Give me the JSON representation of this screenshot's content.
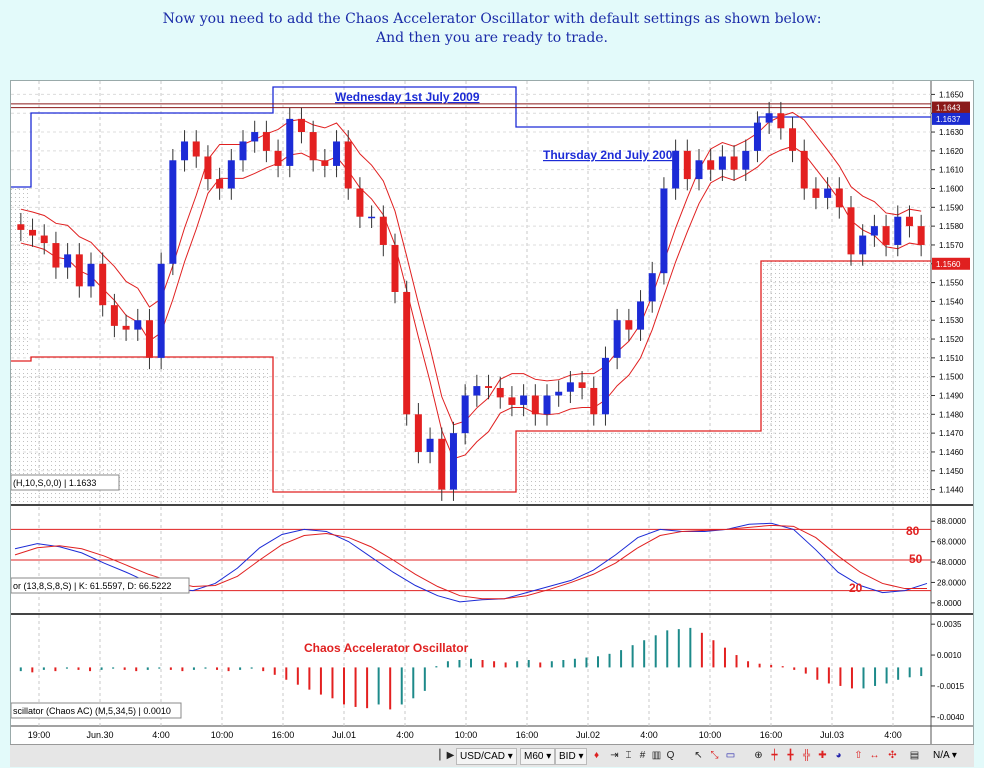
{
  "header": {
    "line1": "Now you need to add the Chaos Accelerator Oscillator with default settings as shown below:",
    "line2": "And then you are ready to trade."
  },
  "annotations": {
    "wednesday": "Wednesday 1st July 2009",
    "thursday": "Thursday 2nd July 2009",
    "ac_title": "Chaos Accelerator Oscillator",
    "stoch_80": "80",
    "stoch_50": "50",
    "stoch_20": "20"
  },
  "price_panel": {
    "indicator_label": "(H,10,S,0,0) | 1.1633",
    "price_ticks": [
      "1.1650",
      "1.1640",
      "1.1630",
      "1.1620",
      "1.1610",
      "1.1600",
      "1.1590",
      "1.1580",
      "1.1570",
      "1.1560",
      "1.1550",
      "1.1540",
      "1.1530",
      "1.1520",
      "1.1510",
      "1.1500",
      "1.1490",
      "1.1480",
      "1.1470",
      "1.1460",
      "1.1450",
      "1.1440"
    ],
    "markers": [
      {
        "value": "1.1643",
        "color": "#8b1a1a"
      },
      {
        "value": "1.1637",
        "color": "#1a2bd0"
      },
      {
        "value": "1.1560",
        "color": "#e02020"
      }
    ]
  },
  "stoch_panel": {
    "label": "or  (13,8,S,8,S) | K: 61.5597, D: 66.5222",
    "ticks": [
      "88.0000",
      "68.0000",
      "48.0000",
      "28.0000",
      "8.0000"
    ]
  },
  "ac_panel": {
    "label": "scillator (Chaos AC) (M,5,34,5) | 0.0010",
    "ticks": [
      "0.0035",
      "0.0010",
      "-0.0015",
      "-0.0040"
    ]
  },
  "time_axis": [
    "19:00",
    "Jun.30",
    "4:00",
    "10:00",
    "16:00",
    "Jul.01",
    "4:00",
    "10:00",
    "16:00",
    "Jul.02",
    "4:00",
    "10:00",
    "16:00",
    "Jul.03",
    "4:00"
  ],
  "toolbar": {
    "symbol": "USD/CAD",
    "timeframe": "M60",
    "price_type": "BID",
    "zoom_label": "N/A"
  },
  "colors": {
    "bull": "#1c2bd6",
    "bear": "#e32020",
    "teal": "#1d8a8a",
    "envelope": "#e02020",
    "stoch_k": "#1c2bd6",
    "stoch_d": "#e02020"
  },
  "chart_data": [
    {
      "type": "candlestick",
      "title": "",
      "series": [
        {
          "name": "",
          "close": [
            1.1578,
            1.1575,
            1.1571,
            1.1558,
            1.1565,
            1.1548,
            1.156,
            1.1538,
            1.1527,
            1.1525,
            1.153,
            1.151,
            1.156,
            1.1615,
            1.1625,
            1.1617,
            1.1605,
            1.16,
            1.1615,
            1.1625,
            1.163,
            1.162,
            1.1612,
            1.1637,
            1.163,
            1.1615,
            1.1612,
            1.1625,
            1.16,
            1.1585,
            1.1585,
            1.157,
            1.1545,
            1.148,
            1.146,
            1.1467,
            1.144,
            1.147,
            1.149,
            1.1495,
            1.1494,
            1.1489,
            1.1485,
            1.149,
            1.148,
            1.149,
            1.1492,
            1.1497,
            1.1494,
            1.148,
            1.151,
            1.153,
            1.1525,
            1.154,
            1.1555,
            1.16,
            1.162,
            1.1605,
            1.1615,
            1.161,
            1.1617,
            1.161,
            1.162,
            1.1635,
            1.164,
            1.1632,
            1.162,
            1.16,
            1.1595,
            1.16,
            1.159,
            1.1565,
            1.1575,
            1.158,
            1.157,
            1.1585,
            1.158,
            1.157
          ]
        }
      ],
      "ylim": [
        1.1435,
        1.1655
      ]
    },
    {
      "type": "line",
      "title": "",
      "series": [
        {
          "name": "K",
          "values": [
            61,
            66,
            63,
            57,
            47,
            38,
            28,
            22,
            20,
            27,
            42,
            62,
            75,
            80,
            78,
            68,
            53,
            38,
            25,
            15,
            9,
            11,
            12,
            18,
            24,
            30,
            40,
            55,
            72,
            80,
            78,
            78,
            80,
            85,
            86,
            80,
            60,
            38,
            25,
            18,
            20,
            27
          ]
        },
        {
          "name": "D",
          "values": [
            55,
            62,
            64,
            61,
            54,
            45,
            36,
            29,
            24,
            25,
            34,
            50,
            65,
            74,
            76,
            72,
            63,
            50,
            36,
            24,
            15,
            12,
            12,
            15,
            21,
            28,
            36,
            47,
            62,
            74,
            78,
            79,
            80,
            82,
            84,
            83,
            72,
            54,
            38,
            27,
            22,
            22
          ]
        }
      ],
      "ylim": [
        0,
        100
      ]
    },
    {
      "type": "bar",
      "title": "",
      "values": [
        -0.0003,
        -0.0004,
        -0.0002,
        -0.0003,
        -0.0001,
        -0.0002,
        -0.0003,
        -0.0002,
        -0.0001,
        -0.0002,
        -0.0003,
        -0.0002,
        -0.0001,
        -0.0002,
        -0.0003,
        -0.0002,
        -0.0001,
        -0.0002,
        -0.0003,
        -0.0002,
        -0.0001,
        -0.0003,
        -0.0006,
        -0.001,
        -0.0014,
        -0.0018,
        -0.0022,
        -0.0025,
        -0.003,
        -0.0032,
        -0.0033,
        -0.003,
        -0.0034,
        -0.003,
        -0.0025,
        -0.0019,
        0.0001,
        0.0005,
        0.0006,
        0.0007,
        0.0006,
        0.0005,
        0.0004,
        0.0005,
        0.0006,
        0.0004,
        0.0005,
        0.0006,
        0.0007,
        0.0008,
        0.0009,
        0.0011,
        0.0014,
        0.0018,
        0.0022,
        0.0026,
        0.003,
        0.0031,
        0.0032,
        0.0028,
        0.0022,
        0.0016,
        0.001,
        0.0005,
        0.0003,
        0.0002,
        0.0001,
        -0.0002,
        -0.0005,
        -0.001,
        -0.0013,
        -0.0015,
        -0.0017,
        -0.0017,
        -0.0015,
        -0.0013,
        -0.001,
        -0.0008,
        -0.0007
      ],
      "ylim": [
        -0.0045,
        0.004
      ]
    }
  ]
}
